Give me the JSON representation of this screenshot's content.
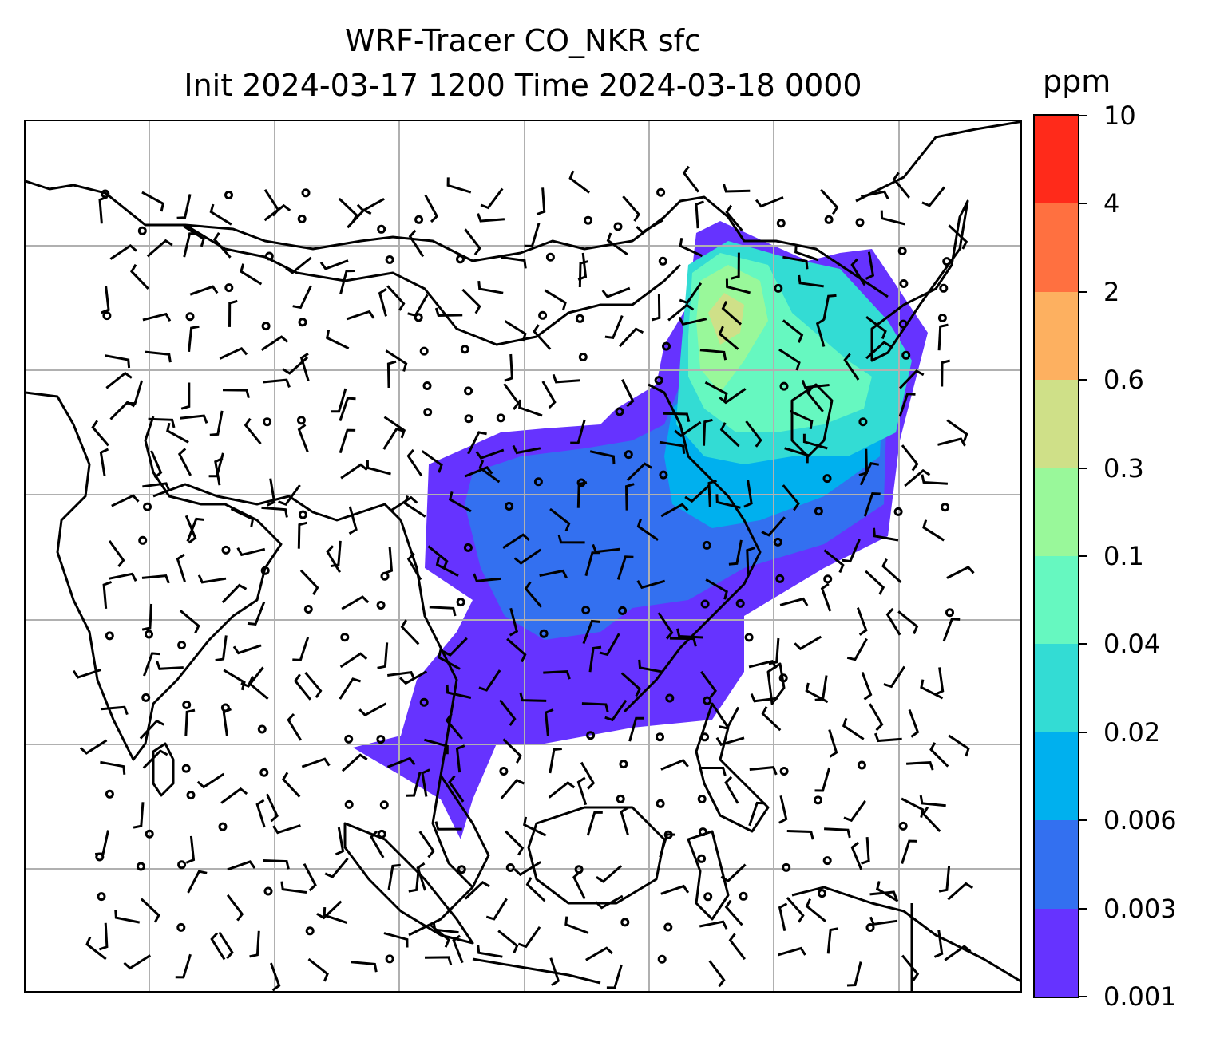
{
  "title": {
    "line1": "WRF-Tracer CO_NKR sfc",
    "line2": "Init 2024-03-17 1200 Time 2024-03-18 0000"
  },
  "colorbar": {
    "unit": "ppm",
    "levels": [
      "0.001",
      "0.003",
      "0.006",
      "0.02",
      "0.04",
      "0.1",
      "0.3",
      "0.6",
      "2",
      "4",
      "10"
    ],
    "colors": [
      "#6633ff",
      "#3370f0",
      "#00b0ee",
      "#33dcd4",
      "#66f8c0",
      "#99f89a",
      "#cfe088",
      "#fdb060",
      "#ff7040",
      "#ff2a1a"
    ]
  },
  "map": {
    "gridline_color": "#b0b0b0",
    "coastline_color": "#000000",
    "plume_region": "Southeast Asia / East Asia",
    "contains_wind_barbs": true,
    "contains_calm_circles": true
  }
}
